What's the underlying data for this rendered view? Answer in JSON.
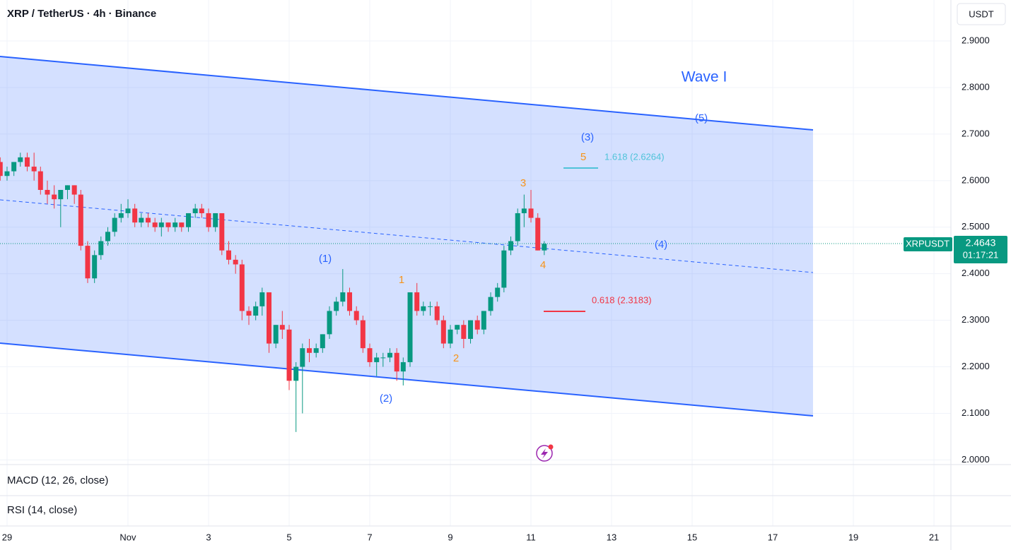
{
  "chart_data": {
    "type": "candlestick",
    "title": "XRP / TetherUS · 4h · Binance",
    "currency": "USDT",
    "symbol": "XRPUSDT",
    "last_price": "2.4643",
    "countdown": "01:17:21",
    "colors": {
      "up": "#089981",
      "down": "#f23645"
    },
    "grid": true,
    "x": [
      -0.17,
      0,
      0.17,
      0.33,
      0.5,
      0.67,
      0.83,
      1,
      1.17,
      1.33,
      1.5,
      1.67,
      1.83,
      2,
      2.17,
      2.33,
      2.5,
      2.67,
      2.83,
      3,
      3.17,
      3.33,
      3.5,
      3.67,
      3.83,
      4,
      4.17,
      4.33,
      4.5,
      4.67,
      4.83,
      5,
      5.17,
      5.33,
      5.5,
      5.67,
      5.83,
      6,
      6.17,
      6.33,
      6.5,
      6.67,
      6.83,
      7,
      7.17,
      7.33,
      7.5,
      7.67,
      7.83,
      8,
      8.17,
      8.33,
      8.5,
      8.67,
      8.83,
      9,
      9.17,
      9.33,
      9.5,
      9.67,
      9.83,
      10,
      10.17,
      10.33,
      10.5,
      10.67,
      10.83,
      11,
      11.17,
      11.33,
      11.5,
      11.67,
      11.83,
      12,
      12.17,
      12.33,
      12.5,
      12.67,
      12.83,
      13,
      13.17,
      13.33
    ],
    "open": [
      2.64,
      2.61,
      2.62,
      2.64,
      2.65,
      2.63,
      2.62,
      2.58,
      2.57,
      2.56,
      2.58,
      2.59,
      2.57,
      2.46,
      2.39,
      2.44,
      2.47,
      2.49,
      2.52,
      2.53,
      2.54,
      2.51,
      2.52,
      2.51,
      2.5,
      2.51,
      2.5,
      2.51,
      2.5,
      2.53,
      2.54,
      2.53,
      2.5,
      2.53,
      2.45,
      2.43,
      2.42,
      2.32,
      2.31,
      2.33,
      2.36,
      2.25,
      2.29,
      2.28,
      2.17,
      2.2,
      2.24,
      2.23,
      2.24,
      2.27,
      2.32,
      2.34,
      2.36,
      2.32,
      2.3,
      2.24,
      2.21,
      2.22,
      2.22,
      2.23,
      2.19,
      2.21,
      2.36,
      2.32,
      2.33,
      2.33,
      2.3,
      2.25,
      2.28,
      2.29,
      2.26,
      2.3,
      2.28,
      2.32,
      2.35,
      2.37,
      2.45,
      2.47,
      2.53,
      2.54,
      2.52,
      2.45
    ],
    "high": [
      2.65,
      2.63,
      2.64,
      2.66,
      2.66,
      2.66,
      2.63,
      2.6,
      2.59,
      2.58,
      2.59,
      2.59,
      2.58,
      2.47,
      2.45,
      2.48,
      2.5,
      2.53,
      2.55,
      2.56,
      2.55,
      2.53,
      2.53,
      2.52,
      2.52,
      2.51,
      2.52,
      2.51,
      2.53,
      2.55,
      2.55,
      2.54,
      2.53,
      2.53,
      2.47,
      2.44,
      2.43,
      2.33,
      2.34,
      2.37,
      2.36,
      2.29,
      2.32,
      2.29,
      2.21,
      2.25,
      2.26,
      2.25,
      2.27,
      2.33,
      2.35,
      2.41,
      2.37,
      2.33,
      2.31,
      2.25,
      2.23,
      2.23,
      2.24,
      2.24,
      2.22,
      2.36,
      2.38,
      2.34,
      2.34,
      2.34,
      2.31,
      2.29,
      2.29,
      2.3,
      2.3,
      2.31,
      2.32,
      2.36,
      2.38,
      2.46,
      2.48,
      2.54,
      2.57,
      2.58,
      2.53,
      2.47
    ],
    "low": [
      2.6,
      2.6,
      2.61,
      2.63,
      2.62,
      2.6,
      2.57,
      2.55,
      2.54,
      2.5,
      2.56,
      2.55,
      2.45,
      2.38,
      2.38,
      2.43,
      2.46,
      2.48,
      2.51,
      2.52,
      2.5,
      2.5,
      2.5,
      2.49,
      2.48,
      2.49,
      2.49,
      2.49,
      2.49,
      2.52,
      2.52,
      2.49,
      2.49,
      2.44,
      2.42,
      2.4,
      2.3,
      2.29,
      2.3,
      2.31,
      2.23,
      2.24,
      2.26,
      2.15,
      2.06,
      2.1,
      2.21,
      2.22,
      2.23,
      2.26,
      2.31,
      2.33,
      2.31,
      2.29,
      2.23,
      2.2,
      2.18,
      2.2,
      2.21,
      2.17,
      2.16,
      2.2,
      2.31,
      2.31,
      2.31,
      2.29,
      2.24,
      2.24,
      2.27,
      2.24,
      2.25,
      2.27,
      2.27,
      2.31,
      2.34,
      2.36,
      2.44,
      2.46,
      2.5,
      2.51,
      2.45,
      2.44
    ],
    "close": [
      2.61,
      2.62,
      2.64,
      2.65,
      2.63,
      2.62,
      2.58,
      2.57,
      2.56,
      2.58,
      2.59,
      2.57,
      2.46,
      2.39,
      2.44,
      2.47,
      2.49,
      2.52,
      2.53,
      2.54,
      2.51,
      2.52,
      2.51,
      2.5,
      2.51,
      2.5,
      2.51,
      2.5,
      2.53,
      2.54,
      2.53,
      2.5,
      2.53,
      2.45,
      2.43,
      2.42,
      2.32,
      2.31,
      2.33,
      2.36,
      2.25,
      2.29,
      2.28,
      2.17,
      2.2,
      2.24,
      2.23,
      2.24,
      2.27,
      2.32,
      2.34,
      2.36,
      2.32,
      2.3,
      2.24,
      2.21,
      2.22,
      2.22,
      2.23,
      2.19,
      2.21,
      2.36,
      2.32,
      2.33,
      2.33,
      2.3,
      2.25,
      2.28,
      2.29,
      2.26,
      2.3,
      2.28,
      2.32,
      2.35,
      2.37,
      2.45,
      2.47,
      2.53,
      2.54,
      2.52,
      2.45,
      2.4643
    ],
    "xlim": [
      -0.175,
      23.42
    ],
    "xticks": [
      {
        "value": 0,
        "label": "29"
      },
      {
        "value": 3,
        "label": "Nov"
      },
      {
        "value": 5,
        "label": "3"
      },
      {
        "value": 7,
        "label": "5"
      },
      {
        "value": 9,
        "label": "7"
      },
      {
        "value": 11,
        "label": "9"
      },
      {
        "value": 13,
        "label": "11"
      },
      {
        "value": 15,
        "label": "13"
      },
      {
        "value": 17,
        "label": "15"
      },
      {
        "value": 19,
        "label": "17"
      },
      {
        "value": 21,
        "label": "19"
      },
      {
        "value": 23,
        "label": "21"
      }
    ],
    "ylim": [
      1.99,
      2.988
    ],
    "yticks": [
      {
        "value": 2.0,
        "label": "2.0000"
      },
      {
        "value": 2.1,
        "label": "2.1000"
      },
      {
        "value": 2.2,
        "label": "2.2000"
      },
      {
        "value": 2.3,
        "label": "2.3000"
      },
      {
        "value": 2.4,
        "label": "2.4000"
      },
      {
        "value": 2.5,
        "label": "2.5000"
      },
      {
        "value": 2.6,
        "label": "2.6000"
      },
      {
        "value": 2.7,
        "label": "2.7000"
      },
      {
        "value": 2.8,
        "label": "2.8000"
      },
      {
        "value": 2.9,
        "label": "2.9000"
      }
    ],
    "annotations": {
      "wave": "Wave I",
      "w5": "(5)",
      "w3": "(3)",
      "w4": "(4)",
      "w1": "(1)",
      "w2": "(2)",
      "s1": "1",
      "s2": "2",
      "s3": "3",
      "s4": "4",
      "s5": "5",
      "fib_up": "1.618 (2.6264)",
      "fib_down": "0.618 (2.3183)"
    },
    "panes": [
      "MACD (12, 26, close)",
      "RSI (14, close)"
    ]
  }
}
